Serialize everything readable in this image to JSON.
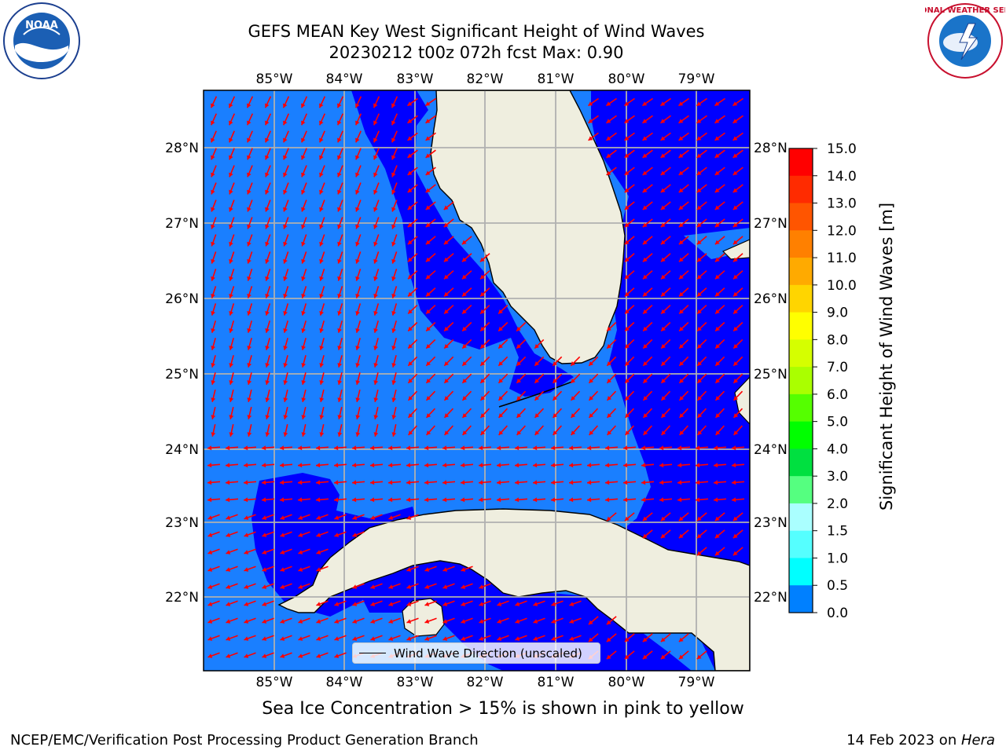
{
  "header": {
    "title_line1": "GEFS MEAN Key West Significant Height of Wind Waves",
    "title_line2": "20230212 t00z 072h fcst   Max: 0.90"
  },
  "axes": {
    "lon_labels": [
      "85°W",
      "84°W",
      "83°W",
      "82°W",
      "81°W",
      "80°W",
      "79°W"
    ],
    "lat_labels": [
      "28°N",
      "27°N",
      "26°N",
      "25°N",
      "24°N",
      "23°N",
      "22°N"
    ]
  },
  "colorbar": {
    "label": "Significant Height of Wind Waves [m]",
    "ticks": [
      "15.0",
      "14.0",
      "13.0",
      "12.0",
      "11.0",
      "10.0",
      "9.0",
      "8.0",
      "7.0",
      "6.0",
      "5.0",
      "4.0",
      "3.0",
      "2.0",
      "1.5",
      "1.0",
      "0.5",
      "0.0"
    ],
    "colors": [
      "#ff0000",
      "#ff2b00",
      "#ff5500",
      "#ff8000",
      "#ffaa00",
      "#ffd500",
      "#ffff00",
      "#d5ff00",
      "#aaff00",
      "#55ff00",
      "#00ff00",
      "#00e040",
      "#55ff80",
      "#aaffff",
      "#55ffff",
      "#00ffff",
      "#0080ff",
      "#0000ff"
    ]
  },
  "colors": {
    "ocean_light": "#1a7fff",
    "ocean_dark": "#0000ff",
    "land": "#efeedf",
    "arrow": "#ff0000",
    "grid": "#b0b0b0"
  },
  "legend": {
    "label": "Wind Wave Direction (unscaled)"
  },
  "caption": "Sea Ice Concentration > 15% is shown in pink to yellow",
  "footer": {
    "left": "NCEP/EMC/Verification Post Processing Product Generation Branch",
    "right_date": "14 Feb 2023 on ",
    "right_host": "Hera"
  },
  "logos": {
    "left_text": "NOAA",
    "right_text": "NATIONAL WEATHER SERVICE"
  }
}
